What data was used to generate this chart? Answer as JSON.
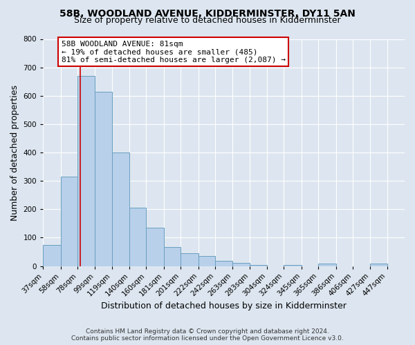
{
  "title": "58B, WOODLAND AVENUE, KIDDERMINSTER, DY11 5AN",
  "subtitle": "Size of property relative to detached houses in Kidderminster",
  "xlabel": "Distribution of detached houses by size in Kidderminster",
  "ylabel": "Number of detached properties",
  "bin_labels": [
    "37sqm",
    "58sqm",
    "78sqm",
    "99sqm",
    "119sqm",
    "140sqm",
    "160sqm",
    "181sqm",
    "201sqm",
    "222sqm",
    "242sqm",
    "263sqm",
    "283sqm",
    "304sqm",
    "324sqm",
    "345sqm",
    "365sqm",
    "386sqm",
    "406sqm",
    "427sqm",
    "447sqm"
  ],
  "bar_values": [
    75,
    315,
    670,
    615,
    400,
    205,
    135,
    68,
    45,
    35,
    18,
    10,
    5,
    0,
    5,
    0,
    8,
    0,
    0,
    8,
    0
  ],
  "bar_color": "#b8d0ea",
  "bar_edge_color": "#6a9fc0",
  "bin_edges": [
    37,
    58,
    78,
    99,
    119,
    140,
    160,
    181,
    201,
    222,
    242,
    263,
    283,
    304,
    324,
    345,
    365,
    386,
    406,
    427,
    447,
    468
  ],
  "property_line_x": 81,
  "property_line_label": "58B WOODLAND AVENUE: 81sqm",
  "annotation_line1": "← 19% of detached houses are smaller (485)",
  "annotation_line2": "81% of semi-detached houses are larger (2,087) →",
  "annotation_box_color": "#ffffff",
  "annotation_box_edge": "#cc0000",
  "red_line_color": "#cc0000",
  "ylim": [
    0,
    800
  ],
  "yticks": [
    0,
    100,
    200,
    300,
    400,
    500,
    600,
    700,
    800
  ],
  "bg_color": "#dde6f0",
  "plot_bg_color": "#dde6f0",
  "grid_color": "#ffffff",
  "footer_line1": "Contains HM Land Registry data © Crown copyright and database right 2024.",
  "footer_line2": "Contains public sector information licensed under the Open Government Licence v3.0.",
  "title_fontsize": 10,
  "subtitle_fontsize": 9,
  "axis_label_fontsize": 9,
  "tick_fontsize": 7.5,
  "footer_fontsize": 6.5
}
